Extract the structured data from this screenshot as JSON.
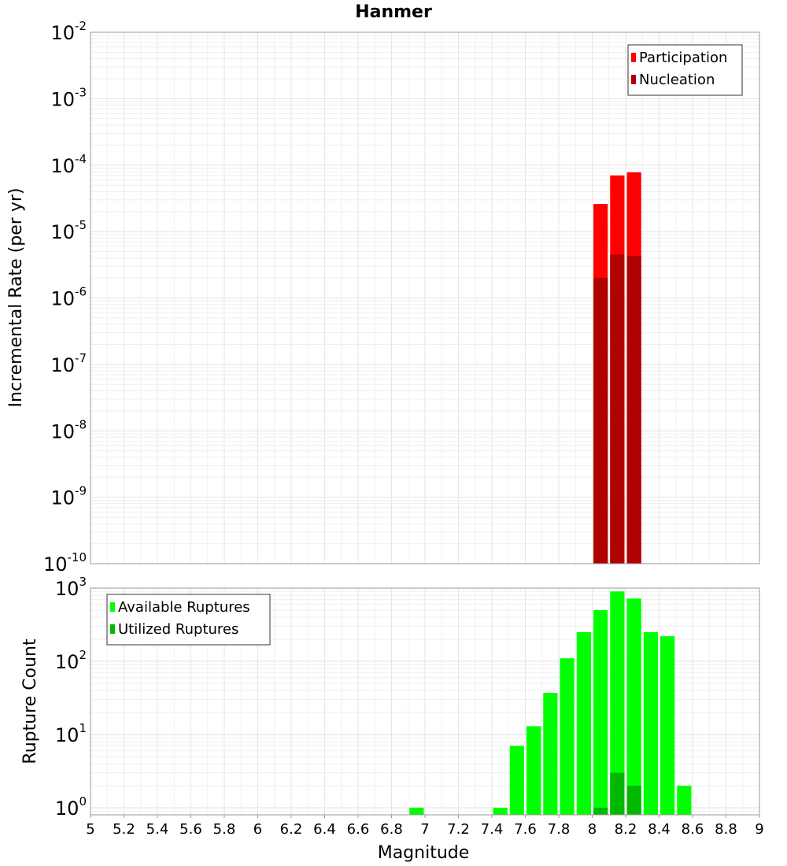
{
  "title": "Hanmer",
  "chart_data": [
    {
      "type": "bar",
      "log_scale_y": true,
      "title": "Hanmer",
      "xlabel": "",
      "ylabel": "Incremental Rate (per yr)",
      "xlim": [
        5,
        9
      ],
      "ylim": [
        1e-10,
        0.01
      ],
      "y_ticks": [
        {
          "base": "10",
          "exp": "-10"
        },
        {
          "base": "10",
          "exp": "-9"
        },
        {
          "base": "10",
          "exp": "-8"
        },
        {
          "base": "10",
          "exp": "-7"
        },
        {
          "base": "10",
          "exp": "-6"
        },
        {
          "base": "10",
          "exp": "-5"
        },
        {
          "base": "10",
          "exp": "-4"
        },
        {
          "base": "10",
          "exp": "-3"
        },
        {
          "base": "10",
          "exp": "-2"
        }
      ],
      "bin_width": 0.1,
      "legend_position": "top-right",
      "series": [
        {
          "name": "Participation",
          "color": "#ff0000",
          "x": [
            8.05,
            8.15,
            8.25
          ],
          "values": [
            2.6e-05,
            7e-05,
            7.8e-05
          ]
        },
        {
          "name": "Nucleation",
          "color": "#b00000",
          "x": [
            8.05,
            8.15,
            8.25
          ],
          "values": [
            2e-06,
            4.5e-06,
            4.3e-06
          ]
        }
      ]
    },
    {
      "type": "bar",
      "log_scale_y": true,
      "title": "",
      "xlabel": "Magnitude",
      "ylabel": "Rupture Count",
      "xlim": [
        5,
        9
      ],
      "ylim": [
        0.8,
        1000
      ],
      "x_ticks": [
        "5",
        "5.2",
        "5.4",
        "5.6",
        "5.8",
        "6",
        "6.2",
        "6.4",
        "6.6",
        "6.8",
        "7",
        "7.2",
        "7.4",
        "7.6",
        "7.8",
        "8",
        "8.2",
        "8.4",
        "8.6",
        "8.8",
        "9"
      ],
      "y_ticks": [
        {
          "base": "10",
          "exp": "0"
        },
        {
          "base": "10",
          "exp": "1"
        },
        {
          "base": "10",
          "exp": "2"
        },
        {
          "base": "10",
          "exp": "3"
        }
      ],
      "bin_width": 0.1,
      "legend_position": "top-left",
      "series": [
        {
          "name": "Available Ruptures",
          "color": "#00ff00",
          "x": [
            6.95,
            7.45,
            7.55,
            7.65,
            7.75,
            7.85,
            7.95,
            8.05,
            8.15,
            8.25,
            8.35,
            8.45,
            8.55
          ],
          "values": [
            1,
            1,
            7,
            13,
            37,
            110,
            250,
            500,
            900,
            720,
            250,
            220,
            2
          ]
        },
        {
          "name": "Utilized Ruptures",
          "color": "#00b800",
          "x": [
            8.05,
            8.15,
            8.25
          ],
          "values": [
            1,
            3,
            2
          ]
        }
      ]
    }
  ]
}
